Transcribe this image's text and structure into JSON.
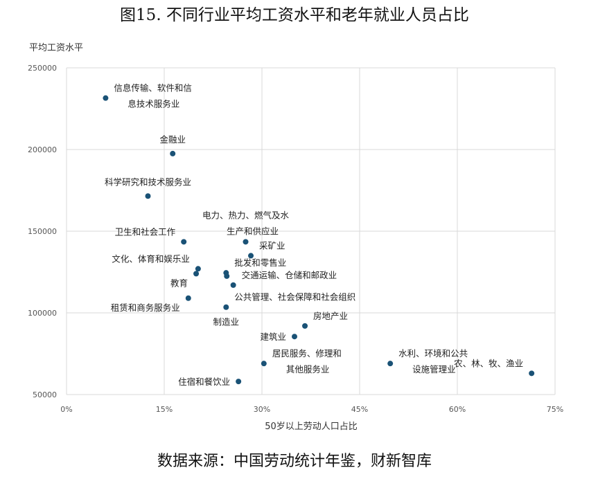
{
  "title": "图15. 不同行业平均工资水平和老年就业人员占比",
  "source": "数据来源：中国劳动统计年鉴，财新智库",
  "colors": {
    "point": "#1a5276",
    "grid": "#d9d9d9"
  },
  "chart_data": {
    "type": "scatter",
    "ylabel": "平均工资水平",
    "xlabel": "50岁以上劳动人口占比",
    "xlim": [
      0,
      0.75
    ],
    "ylim": [
      50000,
      250000
    ],
    "x_ticks": [
      0,
      0.15,
      0.3,
      0.45,
      0.6,
      0.75
    ],
    "x_tick_labels": [
      "0%",
      "15%",
      "30%",
      "45%",
      "60%",
      "75%"
    ],
    "y_ticks": [
      50000,
      100000,
      150000,
      200000,
      250000
    ],
    "y_tick_labels": [
      "50000",
      "100000",
      "150000",
      "200000",
      "250000"
    ],
    "grid": true,
    "points": [
      {
        "x": 0.06,
        "y": 231500,
        "label": [
          "信息传输、软件和信",
          "息技术服务业"
        ],
        "anchor": "ne"
      },
      {
        "x": 0.163,
        "y": 197500,
        "label": [
          "金融业"
        ],
        "anchor": "n"
      },
      {
        "x": 0.125,
        "y": 171500,
        "label": [
          "科学研究和技术服务业"
        ],
        "anchor": "n"
      },
      {
        "x": 0.275,
        "y": 143500,
        "label": [
          "电力、热力、燃气及水",
          "生产和供应业"
        ],
        "anchor": "n2"
      },
      {
        "x": 0.18,
        "y": 143500,
        "label": [
          "卫生和社会工作"
        ],
        "anchor": "nw"
      },
      {
        "x": 0.283,
        "y": 135000,
        "label": [
          "采矿业"
        ],
        "anchor": "ne"
      },
      {
        "x": 0.202,
        "y": 127000,
        "label": [
          "文化、体育和娱乐业"
        ],
        "anchor": "nw"
      },
      {
        "x": 0.199,
        "y": 124000,
        "label": [
          "教育"
        ],
        "anchor": "sw"
      },
      {
        "x": 0.245,
        "y": 124500,
        "label": [
          "批发和零售业"
        ],
        "anchor": "ne"
      },
      {
        "x": 0.246,
        "y": 122500,
        "label": [],
        "anchor": "none"
      },
      {
        "x": 0.256,
        "y": 117000,
        "label": [
          "交通运输、仓储和邮政业"
        ],
        "anchor": "ne"
      },
      {
        "x": 0.187,
        "y": 109000,
        "label": [
          "租赁和商务服务业"
        ],
        "anchor": "sw"
      },
      {
        "x": 0.245,
        "y": 103500,
        "label": [
          "公共管理、社会保障和社会组织"
        ],
        "anchor": "ne"
      },
      {
        "x": 0.245,
        "y": 103500,
        "label": [
          "制造业"
        ],
        "anchor": "s"
      },
      {
        "x": 0.366,
        "y": 92000,
        "label": [
          "房地产业"
        ],
        "anchor": "ne"
      },
      {
        "x": 0.35,
        "y": 85500,
        "label": [
          "建筑业"
        ],
        "anchor": "w"
      },
      {
        "x": 0.303,
        "y": 69000,
        "label": [
          "居民服务、修理和",
          "其他服务业"
        ],
        "anchor": "ne"
      },
      {
        "x": 0.497,
        "y": 69000,
        "label": [
          "水利、环境和公共",
          "设施管理业"
        ],
        "anchor": "ne"
      },
      {
        "x": 0.714,
        "y": 63000,
        "label": [
          "农、林、牧、渔业"
        ],
        "anchor": "nw"
      },
      {
        "x": 0.264,
        "y": 58000,
        "label": [
          "住宿和餐饮业"
        ],
        "anchor": "w"
      }
    ]
  }
}
